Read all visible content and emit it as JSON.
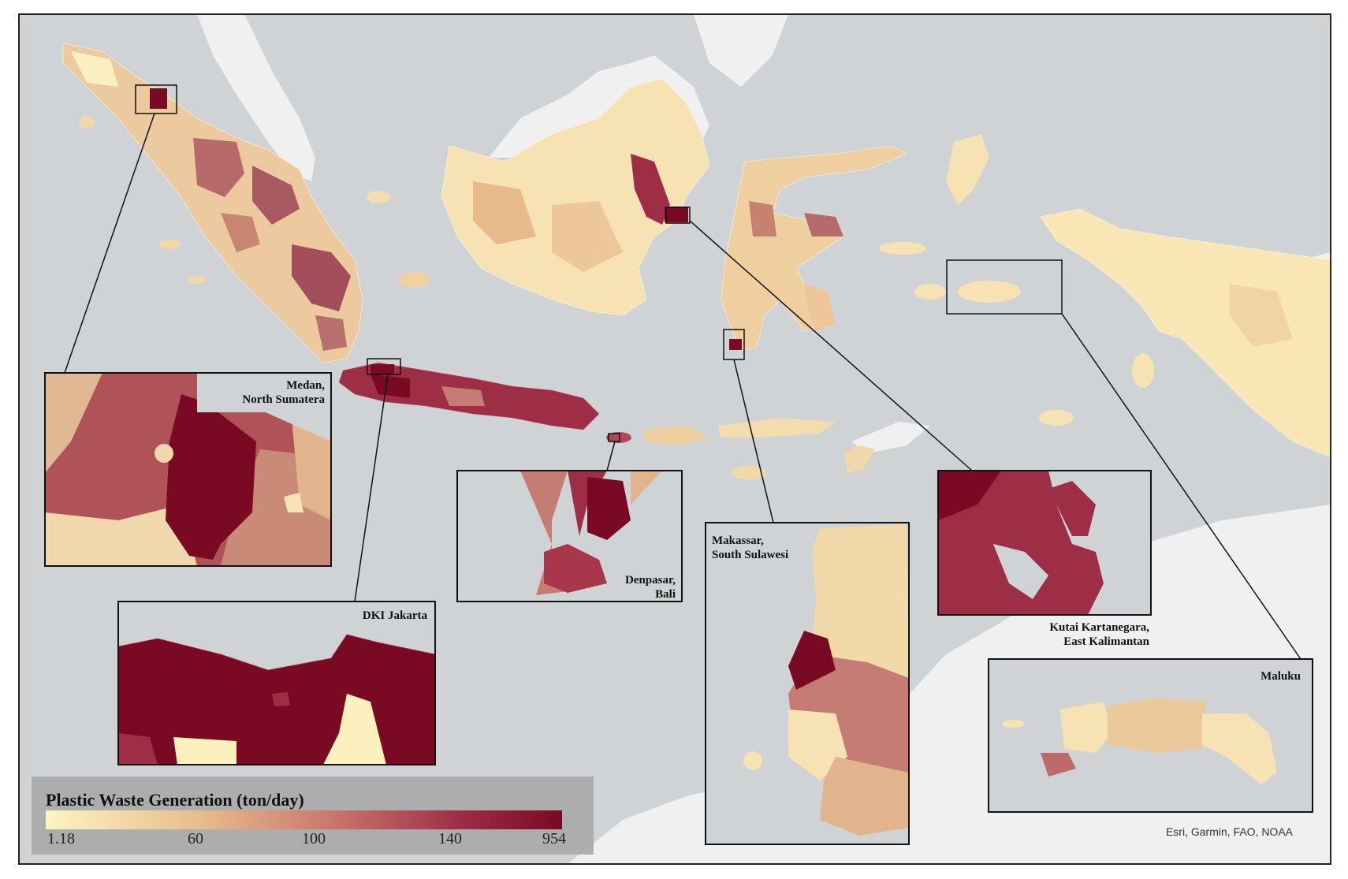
{
  "map": {
    "legend": {
      "title": "Plastic Waste Generation (ton/day)",
      "ticks": [
        "1.18",
        "60",
        "100",
        "140",
        "954"
      ],
      "colors": [
        "#fcf4c3",
        "#e8bc8b",
        "#c9786e",
        "#9e2e46",
        "#7a0a24"
      ]
    },
    "attribution": "Esri, Garmin, FAO, NOAA",
    "insets": {
      "medan": {
        "line1": "Medan,",
        "line2": "North Sumatera"
      },
      "jakarta": {
        "line1": "DKI Jakarta"
      },
      "denpasar": {
        "line1": "Denpasar,",
        "line2": "Bali"
      },
      "makassar": {
        "line1": "Makassar,",
        "line2": "South Sulawesi"
      },
      "kutai": {
        "line1": "Kutai Kartanegara,",
        "line2": "East Kalimantan"
      },
      "maluku": {
        "line1": "Maluku"
      }
    },
    "colors": {
      "sea": "#cfd3d6",
      "land_bg": "#f1f1f1",
      "frame": "#222222"
    }
  }
}
